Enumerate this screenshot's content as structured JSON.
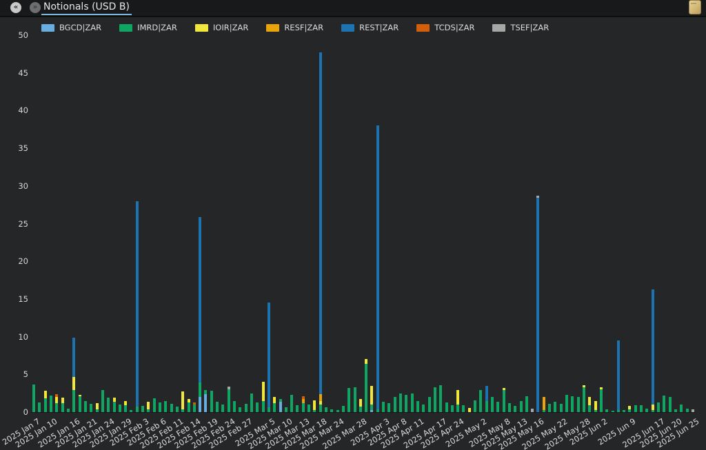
{
  "topbar": {
    "tab_title": "Notionals (USD B)",
    "back_glyph": "«",
    "forward_glyph": "»",
    "icons": [
      "chevrons-left-icon",
      "chevrons-right-icon",
      "notepad-icon"
    ]
  },
  "colors": {
    "topbar_bg": "#17191b",
    "chart_bg": "#242628",
    "tab_underline": "#7cb7dc",
    "text": "#dcdcdc",
    "notepad_icon": "#d3b878"
  },
  "chart_data": {
    "type": "bar",
    "stacked": true,
    "title": "Notionals (USD B)",
    "xlabel": "",
    "ylabel": "",
    "ylim": [
      0,
      50
    ],
    "ytick_step": 5,
    "grid": false,
    "legend_position": "top",
    "series_names": [
      "BGCD|ZAR",
      "IMRD|ZAR",
      "IOIR|ZAR",
      "RESF|ZAR",
      "REST|ZAR",
      "TCDS|ZAR",
      "TSEF|ZAR"
    ],
    "series_colors": [
      "#68aede",
      "#0fa562",
      "#f1e73c",
      "#e8a40a",
      "#1d72b0",
      "#d45f0b",
      "#a6a6a6"
    ],
    "stack_order_note": "each bar = [BGCD,IMRD,IOIR,RESF,REST,TCDS,TSEF], stacked bottom to top, values in USD B",
    "bars": [
      [
        0,
        3.7,
        0,
        0,
        0,
        0,
        0
      ],
      [
        0,
        1.3,
        0,
        0,
        0,
        0,
        0
      ],
      [
        0,
        1.8,
        1,
        0,
        0,
        0,
        0
      ],
      [
        0,
        2.2,
        0,
        0,
        0,
        0,
        0
      ],
      [
        0,
        1.2,
        0.8,
        0,
        0,
        0.4,
        0
      ],
      [
        0,
        1.2,
        0.7,
        0,
        0,
        0,
        0
      ],
      [
        0,
        0.5,
        0,
        0,
        0,
        0,
        0
      ],
      [
        0,
        2.9,
        1.75,
        0,
        5.2,
        0,
        0
      ],
      [
        0,
        2.1,
        0.2,
        0,
        0,
        0,
        0
      ],
      [
        0,
        1.5,
        0,
        0,
        0,
        0,
        0
      ],
      [
        0,
        1.1,
        0,
        0,
        0,
        0,
        0
      ],
      [
        0,
        0.4,
        0.8,
        0,
        0,
        0,
        0
      ],
      [
        0,
        2.9,
        0,
        0,
        0,
        0,
        0
      ],
      [
        0,
        1.9,
        0,
        0,
        0,
        0,
        0
      ],
      [
        0,
        1.4,
        0.5,
        0,
        0,
        0,
        0
      ],
      [
        0,
        1,
        0,
        0,
        0,
        0,
        0
      ],
      [
        0,
        0.9,
        0.6,
        0,
        0,
        0,
        0
      ],
      [
        0,
        0.3,
        0,
        0,
        0,
        0,
        0
      ],
      [
        0,
        0.7,
        0,
        0,
        27.3,
        0,
        0
      ],
      [
        0,
        0.8,
        0,
        0,
        0,
        0,
        0
      ],
      [
        0,
        0.4,
        1,
        0,
        0,
        0,
        0
      ],
      [
        0,
        1.8,
        0,
        0,
        0,
        0,
        0
      ],
      [
        0,
        1.3,
        0,
        0,
        0,
        0,
        0
      ],
      [
        0,
        1.5,
        0,
        0,
        0,
        0,
        0
      ],
      [
        0,
        1.1,
        0,
        0,
        0,
        0,
        0
      ],
      [
        0,
        0.7,
        0,
        0,
        0,
        0,
        0
      ],
      [
        0,
        0.35,
        2.4,
        0,
        0,
        0,
        0
      ],
      [
        0,
        1.3,
        0.4,
        0,
        0,
        0,
        0
      ],
      [
        0,
        1,
        0,
        0,
        0,
        0.3,
        0
      ],
      [
        2,
        1.9,
        0,
        0,
        22,
        0,
        0
      ],
      [
        2.4,
        0.5,
        0,
        0,
        0,
        0,
        0
      ],
      [
        0,
        2.8,
        0,
        0,
        0,
        0,
        0
      ],
      [
        0,
        1.4,
        0,
        0,
        0,
        0,
        0
      ],
      [
        0,
        1,
        0,
        0,
        0,
        0,
        0
      ],
      [
        0,
        3,
        0,
        0,
        0,
        0,
        0.35
      ],
      [
        0,
        1.5,
        0,
        0,
        0,
        0,
        0
      ],
      [
        0,
        0.6,
        0,
        0,
        0,
        0,
        0
      ],
      [
        0,
        1.1,
        0,
        0,
        0,
        0,
        0
      ],
      [
        0,
        2.5,
        0,
        0,
        0,
        0,
        0
      ],
      [
        0,
        1.3,
        0,
        0,
        0,
        0,
        0
      ],
      [
        0,
        1.5,
        2.5,
        0,
        0,
        0,
        0
      ],
      [
        0,
        0.6,
        0,
        0,
        13.9,
        0,
        0
      ],
      [
        0,
        1.2,
        0.8,
        0,
        0,
        0,
        0
      ],
      [
        1.4,
        0.3,
        0,
        0,
        0,
        0,
        0
      ],
      [
        0,
        0.6,
        0,
        0,
        0,
        0,
        0
      ],
      [
        0,
        2.3,
        0,
        0,
        0,
        0,
        0
      ],
      [
        0,
        0.9,
        0,
        0,
        0,
        0,
        0
      ],
      [
        0,
        1.2,
        0,
        0.5,
        0,
        0.4,
        0
      ],
      [
        0,
        1,
        0,
        0,
        0,
        0,
        0
      ],
      [
        0,
        0.3,
        1.3,
        0,
        0,
        0,
        0
      ],
      [
        0,
        1.05,
        0.45,
        0.9,
        45.3,
        0,
        0
      ],
      [
        0,
        0.6,
        0,
        0,
        0,
        0,
        0
      ],
      [
        0,
        0.35,
        0,
        0,
        0,
        0,
        0
      ],
      [
        0,
        0.25,
        0,
        0,
        0,
        0,
        0
      ],
      [
        0,
        0.8,
        0,
        0,
        0,
        0,
        0
      ],
      [
        0,
        3.2,
        0,
        0,
        0,
        0,
        0
      ],
      [
        0,
        3.3,
        0,
        0,
        0,
        0,
        0
      ],
      [
        0,
        0.75,
        1,
        0,
        0,
        0,
        0
      ],
      [
        0,
        6.4,
        0.6,
        0,
        0,
        0,
        0
      ],
      [
        0.25,
        0.75,
        2.5,
        0,
        0,
        0,
        0
      ],
      [
        0,
        0.4,
        0,
        0,
        37.6,
        0,
        0
      ],
      [
        0,
        1.4,
        0,
        0,
        0,
        0,
        0
      ],
      [
        0,
        1.2,
        0,
        0,
        0,
        0,
        0
      ],
      [
        0,
        2,
        0,
        0,
        0,
        0,
        0
      ],
      [
        0,
        2.5,
        0,
        0,
        0,
        0,
        0
      ],
      [
        0,
        2.3,
        0,
        0,
        0,
        0,
        0
      ],
      [
        0,
        2.5,
        0,
        0,
        0,
        0,
        0
      ],
      [
        0,
        1.5,
        0,
        0,
        0,
        0,
        0
      ],
      [
        0,
        1,
        0,
        0,
        0,
        0,
        0
      ],
      [
        0,
        2,
        0,
        0,
        0,
        0,
        0
      ],
      [
        0,
        3.3,
        0,
        0,
        0,
        0,
        0
      ],
      [
        0,
        3.6,
        0,
        0,
        0,
        0,
        0
      ],
      [
        0,
        1.3,
        0,
        0,
        0,
        0,
        0
      ],
      [
        0,
        0.9,
        0,
        0,
        0,
        0,
        0
      ],
      [
        0,
        1,
        1.9,
        0,
        0,
        0,
        0
      ],
      [
        0,
        0.9,
        0,
        0,
        0,
        0,
        0
      ],
      [
        0,
        0,
        0.55,
        0,
        0,
        0,
        0
      ],
      [
        0,
        1.55,
        0,
        0,
        0,
        0,
        0
      ],
      [
        0,
        2.9,
        0,
        0,
        0,
        0,
        0
      ],
      [
        0,
        1.5,
        0,
        0,
        2,
        0,
        0
      ],
      [
        0,
        2,
        0,
        0,
        0,
        0,
        0
      ],
      [
        0,
        1.4,
        0,
        0,
        0,
        0,
        0
      ],
      [
        0,
        2.9,
        0.3,
        0,
        0,
        0,
        0
      ],
      [
        0,
        1.2,
        0,
        0,
        0,
        0,
        0
      ],
      [
        0,
        0.8,
        0,
        0,
        0,
        0,
        0
      ],
      [
        0,
        1.5,
        0,
        0,
        0,
        0,
        0
      ],
      [
        0,
        2.1,
        0,
        0,
        0,
        0,
        0
      ],
      [
        0,
        0,
        0,
        0,
        0,
        0,
        0.5
      ],
      [
        0,
        0,
        0,
        0,
        28.4,
        0,
        0.3
      ],
      [
        0,
        0.3,
        0,
        1.7,
        0,
        0,
        0
      ],
      [
        0,
        1.1,
        0,
        0,
        0,
        0,
        0
      ],
      [
        0,
        1.4,
        0,
        0,
        0,
        0,
        0
      ],
      [
        0,
        1.1,
        0,
        0,
        0,
        0,
        0
      ],
      [
        0,
        2.3,
        0,
        0,
        0,
        0,
        0
      ],
      [
        0,
        2.1,
        0,
        0,
        0,
        0,
        0
      ],
      [
        0,
        2,
        0,
        0,
        0,
        0,
        0
      ],
      [
        0,
        3.3,
        0.3,
        0,
        0,
        0,
        0
      ],
      [
        0,
        0.95,
        1.1,
        0,
        0,
        0,
        0
      ],
      [
        0,
        0.3,
        1.2,
        0,
        0,
        0,
        0
      ],
      [
        0,
        3,
        0.3,
        0,
        0,
        0,
        0
      ],
      [
        0,
        0.35,
        0,
        0,
        0,
        0,
        0
      ],
      [
        0,
        0.2,
        0,
        0,
        0,
        0,
        0
      ],
      [
        0,
        0.3,
        0,
        0,
        9.2,
        0,
        0
      ],
      [
        0,
        0.3,
        0,
        0,
        0,
        0,
        0
      ],
      [
        0,
        0.4,
        0.4,
        0,
        0,
        0,
        0
      ],
      [
        0,
        0.9,
        0,
        0,
        0,
        0,
        0
      ],
      [
        0,
        0.9,
        0,
        0,
        0,
        0,
        0
      ],
      [
        0,
        0.5,
        0,
        0,
        0,
        0,
        0
      ],
      [
        0,
        0.3,
        0.7,
        0,
        15.3,
        0,
        0
      ],
      [
        0,
        1.3,
        0,
        0,
        0,
        0,
        0
      ],
      [
        0,
        2.2,
        0,
        0,
        0,
        0,
        0
      ],
      [
        0,
        2,
        0,
        0,
        0,
        0,
        0
      ],
      [
        0,
        0.4,
        0,
        0,
        0,
        0,
        0
      ],
      [
        0,
        1,
        0,
        0,
        0,
        0,
        0
      ],
      [
        0,
        0.5,
        0,
        0,
        0,
        0,
        0
      ],
      [
        0,
        0,
        0,
        0,
        0,
        0,
        0.35
      ]
    ],
    "ticks": [
      {
        "index": 0,
        "label": "2025 Jan 7"
      },
      {
        "index": 3,
        "label": "2025 Jan 10"
      },
      {
        "index": 7,
        "label": "2025 Jan 16"
      },
      {
        "index": 10,
        "label": "2025 Jan 21"
      },
      {
        "index": 13,
        "label": "2025 Jan 24"
      },
      {
        "index": 16,
        "label": "2025 Jan 29"
      },
      {
        "index": 19,
        "label": "2025 Feb 3"
      },
      {
        "index": 22,
        "label": "2025 Feb 6"
      },
      {
        "index": 25,
        "label": "2025 Feb 11"
      },
      {
        "index": 28,
        "label": "2025 Feb 14"
      },
      {
        "index": 31,
        "label": "2025 Feb 19"
      },
      {
        "index": 34,
        "label": "2025 Feb 24"
      },
      {
        "index": 37,
        "label": "2025 Feb 27"
      },
      {
        "index": 41,
        "label": "2025 Mar 5"
      },
      {
        "index": 44,
        "label": "2025 Mar 10"
      },
      {
        "index": 47,
        "label": "2025 Mar 13"
      },
      {
        "index": 50,
        "label": "2025 Mar 18"
      },
      {
        "index": 53,
        "label": "2025 Mar 24"
      },
      {
        "index": 57,
        "label": "2025 Mar 28"
      },
      {
        "index": 61,
        "label": "2025 Apr 3"
      },
      {
        "index": 64,
        "label": "2025 Apr 8"
      },
      {
        "index": 67,
        "label": "2025 Apr 11"
      },
      {
        "index": 71,
        "label": "2025 Apr 17"
      },
      {
        "index": 74,
        "label": "2025 Apr 24"
      },
      {
        "index": 78,
        "label": "2025 May 2"
      },
      {
        "index": 82,
        "label": "2025 May 8"
      },
      {
        "index": 85,
        "label": "2025 May 13"
      },
      {
        "index": 88,
        "label": "2025 May 16"
      },
      {
        "index": 92,
        "label": "2025 May 22"
      },
      {
        "index": 96,
        "label": "2025 May 28"
      },
      {
        "index": 99,
        "label": "2025 Jun 2"
      },
      {
        "index": 104,
        "label": "2025 Jun 9"
      },
      {
        "index": 109,
        "label": "2025 Jun 17"
      },
      {
        "index": 112,
        "label": "2025 Jun 20"
      },
      {
        "index": 115,
        "label": "2025 Jun 25"
      }
    ]
  }
}
